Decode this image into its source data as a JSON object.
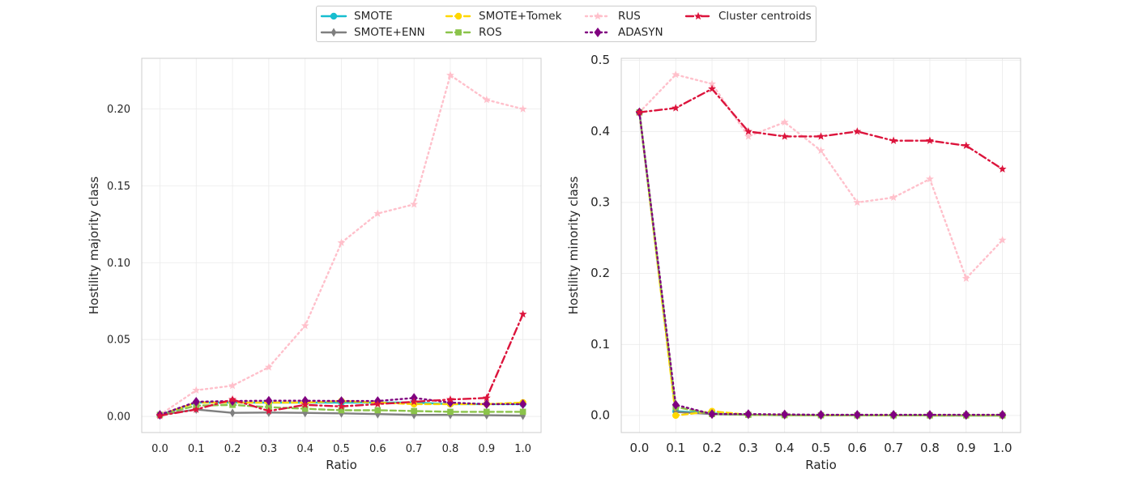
{
  "legend": {
    "entries": [
      "SMOTE",
      "SMOTE+ENN",
      "SMOTE+Tomek",
      "ROS",
      "RUS",
      "ADASYN",
      "Cluster centroids"
    ]
  },
  "series_styles": {
    "SMOTE": {
      "color": "#17becf",
      "marker": "circle",
      "dash": "solid"
    },
    "SMOTE+ENN": {
      "color": "#7f7f7f",
      "marker": "thin-diamond",
      "dash": "solid"
    },
    "SMOTE+Tomek": {
      "color": "#ffd700",
      "marker": "circle",
      "dash": "dashed"
    },
    "ROS": {
      "color": "#8bc34a",
      "marker": "square",
      "dash": "dashed"
    },
    "RUS": {
      "color": "#ffc0cb",
      "marker": "star",
      "dash": "dotted"
    },
    "ADASYN": {
      "color": "#800080",
      "marker": "diamond",
      "dash": "dotted"
    },
    "Cluster centroids": {
      "color": "#dc143c",
      "marker": "star",
      "dash": "dashdot"
    }
  },
  "chart_data": [
    {
      "type": "line",
      "title": "",
      "xlabel": "Ratio",
      "ylabel": "Hostility majority class",
      "x": [
        0.0,
        0.1,
        0.2,
        0.3,
        0.4,
        0.5,
        0.6,
        0.7,
        0.8,
        0.9,
        1.0
      ],
      "xticks": [
        "0.0",
        "0.1",
        "0.2",
        "0.3",
        "0.4",
        "0.5",
        "0.6",
        "0.7",
        "0.8",
        "0.9",
        "1.0"
      ],
      "xlim": [
        -0.05,
        1.05
      ],
      "ylim": [
        -0.0105,
        0.233
      ],
      "yticks": [
        "0.00",
        "0.05",
        "0.10",
        "0.15",
        "0.20"
      ],
      "ytick_values": [
        0.0,
        0.05,
        0.1,
        0.15,
        0.2
      ],
      "grid": true,
      "series": [
        {
          "name": "SMOTE",
          "values": [
            0.001,
            0.009,
            0.009,
            0.009,
            0.009,
            0.009,
            0.009,
            0.009,
            0.008,
            0.008,
            0.008
          ]
        },
        {
          "name": "SMOTE+ENN",
          "values": [
            0.001,
            0.0045,
            0.0023,
            0.0025,
            0.0023,
            0.002,
            0.0015,
            0.001,
            0.001,
            0.0008,
            0.0005
          ]
        },
        {
          "name": "SMOTE+Tomek",
          "values": [
            0.001,
            0.009,
            0.009,
            0.009,
            0.009,
            0.01,
            0.009,
            0.008,
            0.008,
            0.008,
            0.009
          ]
        },
        {
          "name": "ROS",
          "values": [
            0.001,
            0.007,
            0.0075,
            0.006,
            0.005,
            0.004,
            0.004,
            0.0035,
            0.003,
            0.003,
            0.003
          ]
        },
        {
          "name": "RUS",
          "values": [
            0.001,
            0.017,
            0.02,
            0.032,
            0.059,
            0.113,
            0.132,
            0.138,
            0.222,
            0.206,
            0.2
          ]
        },
        {
          "name": "ADASYN",
          "values": [
            0.001,
            0.0095,
            0.01,
            0.0102,
            0.0102,
            0.01,
            0.01,
            0.012,
            0.009,
            0.008,
            0.008
          ]
        },
        {
          "name": "Cluster centroids",
          "values": [
            0.0005,
            0.0045,
            0.011,
            0.0035,
            0.0075,
            0.0065,
            0.008,
            0.0095,
            0.011,
            0.012,
            0.0665
          ]
        }
      ]
    },
    {
      "type": "line",
      "title": "",
      "xlabel": "Ratio",
      "ylabel": "Hostility minority class",
      "x": [
        0.0,
        0.1,
        0.2,
        0.3,
        0.4,
        0.5,
        0.6,
        0.7,
        0.8,
        0.9,
        1.0
      ],
      "xticks": [
        "0.0",
        "0.1",
        "0.2",
        "0.3",
        "0.4",
        "0.5",
        "0.6",
        "0.7",
        "0.8",
        "0.9",
        "1.0"
      ],
      "xlim": [
        -0.05,
        1.05
      ],
      "ylim": [
        -0.024,
        0.503
      ],
      "yticks": [
        "0.0",
        "0.1",
        "0.2",
        "0.3",
        "0.4",
        "0.5"
      ],
      "ytick_values": [
        0.0,
        0.1,
        0.2,
        0.3,
        0.4,
        0.5
      ],
      "grid": true,
      "series": [
        {
          "name": "SMOTE",
          "values": [
            0.427,
            0.006,
            0.003,
            0.001,
            0.0005,
            0.0003,
            0.0002,
            0.0002,
            0.0001,
            0.0001,
            0.0001
          ]
        },
        {
          "name": "SMOTE+ENN",
          "values": [
            0.427,
            0.005,
            0.002,
            0.001,
            0.0005,
            0.0003,
            0.0002,
            0.0002,
            0.0001,
            0.0001,
            0.0001
          ]
        },
        {
          "name": "SMOTE+Tomek",
          "values": [
            0.427,
            0.0,
            0.006,
            0.001,
            0.0005,
            0.0003,
            0.0002,
            0.0002,
            0.0001,
            0.0001,
            0.0001
          ]
        },
        {
          "name": "ROS",
          "values": [
            0.427,
            0.012,
            0.002,
            0.001,
            0.0005,
            0.0003,
            0.0002,
            0.0002,
            0.0001,
            0.0001,
            0.0001
          ]
        },
        {
          "name": "RUS",
          "values": [
            0.427,
            0.48,
            0.467,
            0.393,
            0.413,
            0.373,
            0.3,
            0.307,
            0.333,
            0.193,
            0.247
          ]
        },
        {
          "name": "ADASYN",
          "values": [
            0.427,
            0.015,
            0.002,
            0.002,
            0.0015,
            0.001,
            0.001,
            0.001,
            0.001,
            0.001,
            0.001
          ]
        },
        {
          "name": "Cluster centroids",
          "values": [
            0.427,
            0.433,
            0.46,
            0.4,
            0.393,
            0.393,
            0.4,
            0.387,
            0.387,
            0.38,
            0.347
          ]
        }
      ]
    }
  ]
}
